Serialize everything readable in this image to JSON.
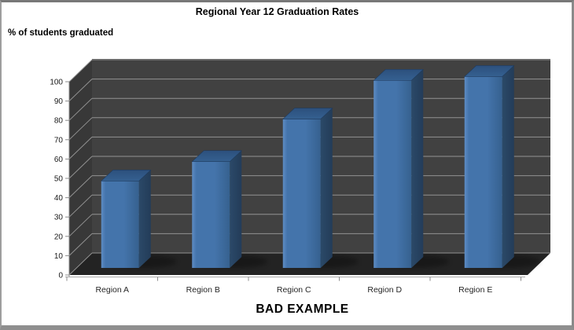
{
  "title": "Regional Year 12 Graduation Rates",
  "y_axis_label": "% of students graduated",
  "footer_label": "BAD EXAMPLE",
  "chart_data": {
    "type": "bar",
    "style": "3d-column",
    "title": "Regional Year 12 Graduation Rates",
    "xlabel": "",
    "ylabel": "% of students graduated",
    "categories": [
      "Region A",
      "Region B",
      "Region C",
      "Region D",
      "Region E"
    ],
    "values": [
      45,
      55,
      77,
      97,
      99
    ],
    "ylim": [
      0,
      100
    ],
    "y_ticks": [
      0,
      10,
      20,
      30,
      40,
      50,
      60,
      70,
      80,
      90,
      100
    ],
    "grid": true,
    "legend": "none",
    "annotation": "BAD EXAMPLE",
    "colors": {
      "background": "#ffffff",
      "back_wall": "#414141",
      "side_wall": "#383838",
      "floor": "#232323",
      "gridline": "#9b9b9b",
      "axis_line": "#a8a8a8",
      "tick_color": "#8c8c8c",
      "tick_label": "#1a1a1a",
      "category_label": "#262626",
      "bar_front_light": "#5d8cc4",
      "bar_front_mid": "#4474ab",
      "bar_front_dark": "#36618f",
      "bar_side_light": "#2b4968",
      "bar_side_dark": "#233c59",
      "bar_top_light": "#356090",
      "bar_top_dark": "#2c507d",
      "shadow": "#000000"
    }
  }
}
